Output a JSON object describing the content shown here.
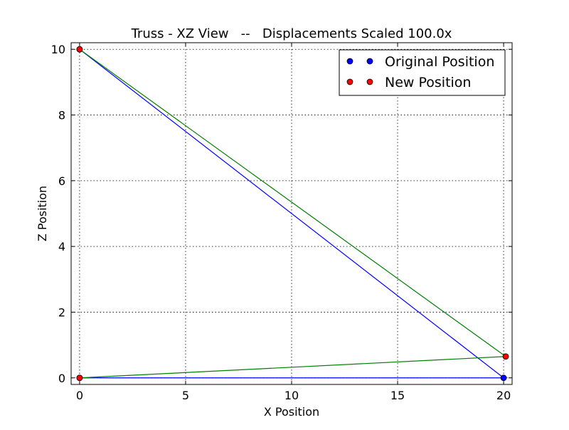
{
  "chart_data": {
    "type": "line",
    "title": "Truss - XZ View   --   Displacements Scaled 100.0x",
    "xlabel": "X Position",
    "ylabel": "Z Position",
    "xlim": [
      -0.4,
      20.4
    ],
    "ylim": [
      -0.2,
      10.2
    ],
    "xticks": [
      0,
      5,
      10,
      15,
      20
    ],
    "yticks": [
      0,
      2,
      4,
      6,
      8,
      10
    ],
    "grid": true,
    "legend": {
      "location": "top-right"
    },
    "series": [
      {
        "name": "Original Position",
        "color": "#0000ff",
        "nodes": [
          {
            "x": 0,
            "y": 10
          },
          {
            "x": 0,
            "y": 0
          },
          {
            "x": 20,
            "y": 0
          }
        ],
        "members": [
          [
            0,
            2
          ],
          [
            1,
            2
          ]
        ]
      },
      {
        "name": "New Position",
        "color": "#ff0000",
        "line_color": "#007f00",
        "nodes": [
          {
            "x": 0,
            "y": 10
          },
          {
            "x": 0,
            "y": 0
          },
          {
            "x": 20.1,
            "y": 0.65
          }
        ],
        "members": [
          [
            0,
            2
          ],
          [
            1,
            2
          ]
        ]
      }
    ]
  }
}
